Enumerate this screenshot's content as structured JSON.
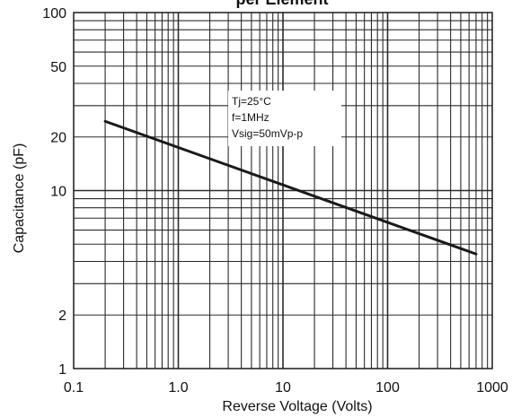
{
  "chart_data": {
    "type": "line",
    "title": "per Element",
    "xlabel": "Reverse Voltage (Volts)",
    "ylabel": "Capacitance (pF)",
    "x_scale": "log",
    "y_scale": "log",
    "xlim": [
      0.1,
      1000
    ],
    "ylim": [
      1,
      100
    ],
    "x_ticks": [
      0.1,
      1,
      10,
      100,
      1000
    ],
    "x_tick_labels": [
      "0.1",
      "1.0",
      "10",
      "100",
      "1000"
    ],
    "y_ticks": [
      1,
      2,
      10,
      20,
      50,
      100
    ],
    "y_tick_labels": [
      "1",
      "2",
      "10",
      "20",
      "50",
      "100"
    ],
    "grid": true,
    "annotation": [
      "Tj=25°C",
      "f=1MHz",
      "Vsig=50mVp-p"
    ],
    "series": [
      {
        "x": [
          0.2,
          700
        ],
        "y": [
          24.5,
          4.4
        ]
      }
    ],
    "colors": {
      "line": "#1a1a1a",
      "grid": "#2a2a2a",
      "background": "#ffffff"
    }
  }
}
